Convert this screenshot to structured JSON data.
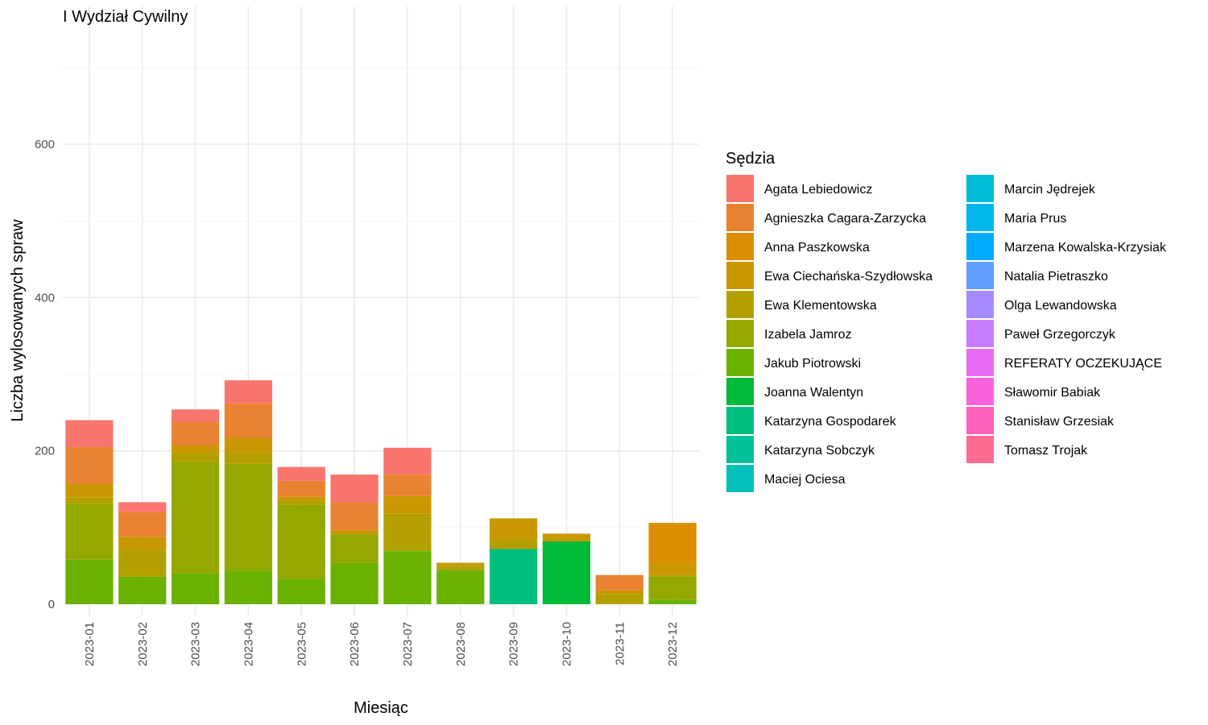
{
  "chart_data": {
    "type": "bar",
    "stacked": true,
    "title": "I Wydział Cywilny",
    "xlabel": "Miesiąc",
    "ylabel": "Liczba wylosowanych spraw",
    "ylim": [
      -30,
      760
    ],
    "yticks": [
      0,
      200,
      400,
      600
    ],
    "grid": true,
    "legend_title": "Sędzia",
    "legend_position": "right",
    "categories": [
      "2023-01",
      "2023-02",
      "2023-03",
      "2023-04",
      "2023-05",
      "2023-06",
      "2023-07",
      "2023-08",
      "2023-09",
      "2023-10",
      "2023-11",
      "2023-12"
    ],
    "series": [
      {
        "name": "Agata Lebiedowicz",
        "color": "#F8766D",
        "values": [
          35,
          13,
          16,
          30,
          18,
          36,
          35,
          0,
          0,
          0,
          0,
          0
        ]
      },
      {
        "name": "Agnieszka Cagara-Zarzycka",
        "color": "#EA8331",
        "values": [
          48,
          32,
          31,
          45,
          21,
          37,
          28,
          0,
          0,
          0,
          20,
          0
        ]
      },
      {
        "name": "Anna Paszkowska",
        "color": "#DB8E00",
        "values": [
          0,
          0,
          0,
          0,
          0,
          0,
          0,
          0,
          0,
          0,
          0,
          53
        ]
      },
      {
        "name": "Ewa Ciechańska-Szydłowska",
        "color": "#C99800",
        "values": [
          18,
          17,
          10,
          19,
          5,
          5,
          23,
          4,
          28,
          10,
          5,
          15
        ]
      },
      {
        "name": "Ewa Klementowska",
        "color": "#B3A000",
        "values": [
          8,
          35,
          12,
          15,
          5,
          0,
          47,
          4,
          12,
          0,
          13,
          2
        ]
      },
      {
        "name": "Izabela Jamroz",
        "color": "#94A800",
        "values": [
          73,
          0,
          145,
          139,
          97,
          37,
          2,
          3,
          0,
          0,
          0,
          30
        ]
      },
      {
        "name": "Jakub Piotrowski",
        "color": "#6BB100",
        "values": [
          58,
          36,
          40,
          44,
          33,
          54,
          69,
          43,
          0,
          0,
          0,
          6
        ]
      },
      {
        "name": "Joanna Walentyn",
        "color": "#00BA38",
        "values": [
          0,
          0,
          0,
          0,
          0,
          0,
          0,
          0,
          0,
          82,
          0,
          0
        ]
      },
      {
        "name": "Katarzyna Gospodarek",
        "color": "#00BF7D",
        "values": [
          0,
          0,
          0,
          0,
          0,
          0,
          0,
          0,
          72,
          0,
          0,
          0
        ]
      },
      {
        "name": "Katarzyna Sobczyk",
        "color": "#00C19A",
        "values": [
          0,
          0,
          0,
          0,
          0,
          0,
          0,
          0,
          0,
          0,
          0,
          0
        ]
      },
      {
        "name": "Maciej Ociesa",
        "color": "#00C0B8",
        "values": [
          0,
          0,
          0,
          0,
          0,
          0,
          0,
          0,
          0,
          0,
          0,
          0
        ]
      },
      {
        "name": "Marcin Jędrejek",
        "color": "#00BCD8",
        "values": [
          0,
          0,
          0,
          0,
          0,
          0,
          0,
          0,
          0,
          0,
          0,
          0
        ]
      },
      {
        "name": "Maria Prus",
        "color": "#00B6EB",
        "values": [
          0,
          0,
          0,
          0,
          0,
          0,
          0,
          0,
          0,
          0,
          0,
          0
        ]
      },
      {
        "name": "Marzena Kowalska-Krzysiak",
        "color": "#00ABFD",
        "values": [
          0,
          0,
          0,
          0,
          0,
          0,
          0,
          0,
          0,
          0,
          0,
          0
        ]
      },
      {
        "name": "Natalia Pietraszko",
        "color": "#619CFF",
        "values": [
          0,
          0,
          0,
          0,
          0,
          0,
          0,
          0,
          0,
          0,
          0,
          0
        ]
      },
      {
        "name": "Olga Lewandowska",
        "color": "#A58AFF",
        "values": [
          0,
          0,
          0,
          0,
          0,
          0,
          0,
          0,
          0,
          0,
          0,
          0
        ]
      },
      {
        "name": "Paweł Grzegorczyk",
        "color": "#C77CFF",
        "values": [
          0,
          0,
          0,
          0,
          0,
          0,
          0,
          0,
          0,
          0,
          0,
          0
        ]
      },
      {
        "name": "REFERATY OCZEKUJĄCE",
        "color": "#E76BF3",
        "values": [
          0,
          0,
          0,
          0,
          0,
          0,
          0,
          0,
          0,
          0,
          0,
          0
        ]
      },
      {
        "name": "Sławomir Babiak",
        "color": "#FA62DB",
        "values": [
          0,
          0,
          0,
          0,
          0,
          0,
          0,
          0,
          0,
          0,
          0,
          0
        ]
      },
      {
        "name": "Stanisław Grzesiak",
        "color": "#FF62BC",
        "values": [
          0,
          0,
          0,
          0,
          0,
          0,
          0,
          0,
          0,
          0,
          0,
          0
        ]
      },
      {
        "name": "Tomasz Trojak",
        "color": "#FF6C91",
        "values": [
          0,
          0,
          0,
          0,
          0,
          0,
          0,
          0,
          0,
          0,
          0,
          0
        ]
      }
    ]
  }
}
